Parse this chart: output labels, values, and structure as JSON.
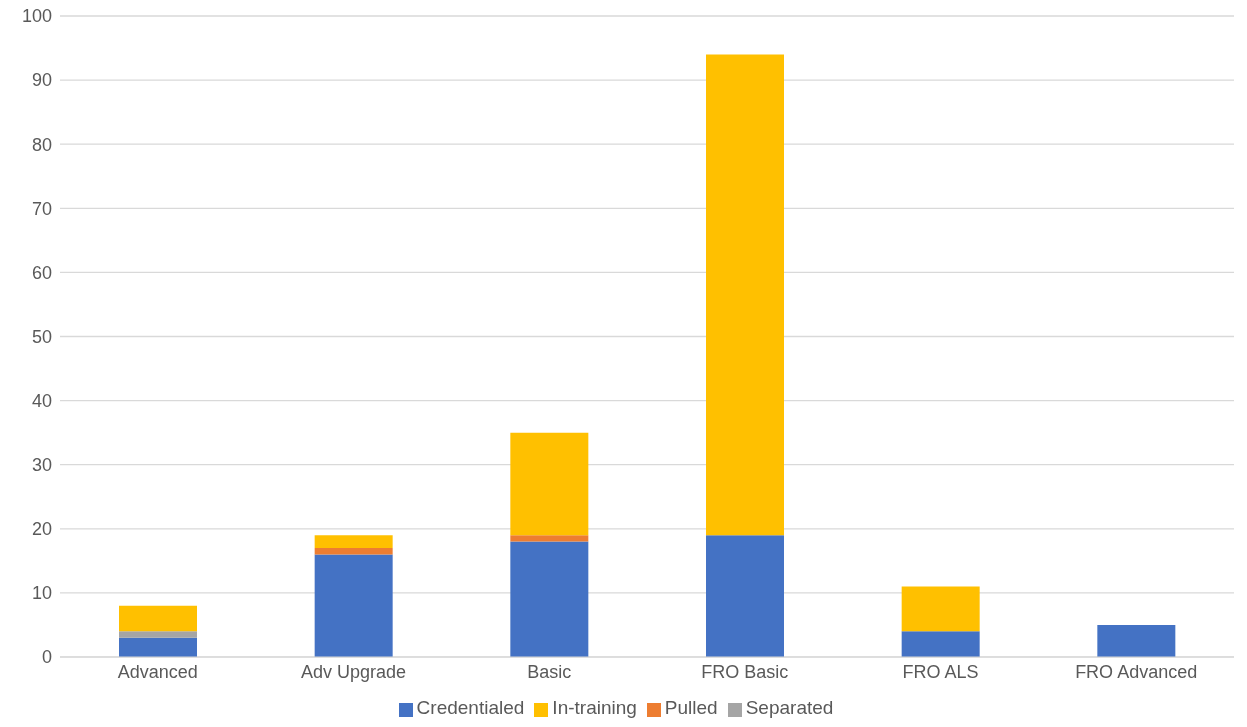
{
  "chart_data": {
    "type": "bar",
    "stacked": true,
    "categories": [
      "Advanced",
      "Adv Upgrade",
      "Basic",
      "FRO Basic",
      "FRO ALS",
      "FRO Advanced"
    ],
    "series": [
      {
        "name": "Credentialed",
        "color": "#4472c4",
        "values": [
          3,
          16,
          18,
          19,
          4,
          5
        ]
      },
      {
        "name": "Pulled",
        "color": "#ed7d31",
        "values": [
          0,
          1,
          1,
          0,
          0,
          0
        ]
      },
      {
        "name": "Separated",
        "color": "#a5a5a5",
        "values": [
          1,
          0,
          0,
          0,
          0,
          0
        ]
      },
      {
        "name": "In-training",
        "color": "#ffc000",
        "values": [
          4,
          2,
          16,
          75,
          7,
          0
        ]
      }
    ],
    "ylim": [
      0,
      100
    ],
    "yticks": [
      0,
      10,
      20,
      30,
      40,
      50,
      60,
      70,
      80,
      90,
      100
    ],
    "grid": "y",
    "legend": "bottom"
  }
}
